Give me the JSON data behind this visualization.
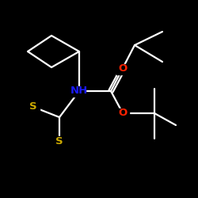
{
  "background_color": "#000000",
  "bond_color": "#ffffff",
  "atom_colors": {
    "O": "#ff2200",
    "N": "#1a1aff",
    "S": "#ccaa00",
    "C": "#ffffff"
  },
  "figsize": [
    2.5,
    2.5
  ],
  "dpi": 100,
  "lw": 1.6,
  "fontsize": 9.5
}
